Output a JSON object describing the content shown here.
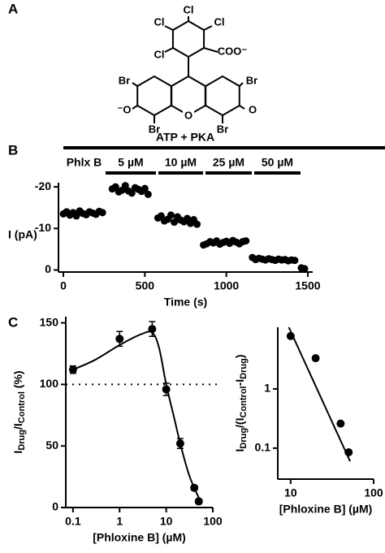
{
  "panel_labels": [
    "A",
    "B",
    "C"
  ],
  "structure": {
    "labels": [
      "Cl",
      "Cl",
      "Cl",
      "Cl",
      "COO⁻",
      "Br",
      "Br",
      "⁻O",
      "O",
      "O",
      "Br",
      "Br"
    ]
  },
  "chart_data": [
    {
      "type": "scatter",
      "title": "ATP + PKA",
      "annotations": [
        "Phlx B",
        "5 µM",
        "10 µM",
        "25 µM",
        "50 µM"
      ],
      "x": [
        0,
        20,
        40,
        60,
        80,
        100,
        120,
        140,
        160,
        180,
        200,
        220,
        240,
        300,
        320,
        340,
        360,
        380,
        400,
        420,
        440,
        460,
        480,
        500,
        520,
        580,
        600,
        620,
        640,
        660,
        680,
        700,
        720,
        740,
        760,
        780,
        800,
        820,
        860,
        880,
        900,
        920,
        940,
        960,
        980,
        1000,
        1020,
        1040,
        1060,
        1080,
        1100,
        1120,
        1160,
        1180,
        1200,
        1220,
        1240,
        1260,
        1280,
        1300,
        1320,
        1340,
        1360,
        1380,
        1400,
        1420,
        1460,
        1480
      ],
      "values": [
        -13.5,
        -14,
        -13.2,
        -13.8,
        -13,
        -14.2,
        -13.6,
        -13.3,
        -14,
        -13.7,
        -13.4,
        -14.1,
        -13.8,
        -19.5,
        -20,
        -18.8,
        -19.2,
        -20.3,
        -19,
        -18.5,
        -19.8,
        -19.4,
        -18.9,
        -19.6,
        -18.2,
        -12.5,
        -13,
        -11.8,
        -12.2,
        -13.2,
        -11.5,
        -12.8,
        -12,
        -11.6,
        -12.4,
        -11.2,
        -12.1,
        -11,
        -6,
        -6.3,
        -6.8,
        -6.5,
        -7,
        -6.2,
        -6.6,
        -6.9,
        -6.4,
        -7.1,
        -6.7,
        -6.3,
        -6.8,
        -7,
        -3,
        -2.5,
        -2.8,
        -2.6,
        -2.4,
        -2.7,
        -2.5,
        -2.3,
        -2.6,
        -2.4,
        -2.5,
        -2.2,
        -2.4,
        -2.3,
        -0.5,
        -0.3
      ],
      "xlim": [
        -30,
        1530
      ],
      "ylim": [
        0.5,
        -21
      ],
      "xticks": [
        0,
        500,
        1000,
        1500
      ],
      "yticks": [
        -20,
        -10,
        0
      ],
      "xlabel": "Time (s)",
      "ylabel": "I (pA)",
      "color": "#000000"
    },
    {
      "type": "line",
      "log_x": true,
      "x": [
        0.1,
        1,
        5,
        10,
        20,
        40,
        50
      ],
      "values": [
        112,
        137,
        145,
        96,
        52,
        16,
        5
      ],
      "errors": [
        3,
        6,
        6,
        5,
        4,
        2,
        2
      ],
      "fit_x": [
        0.1,
        0.3,
        1,
        3,
        5,
        7,
        10,
        15,
        20,
        30,
        40,
        50
      ],
      "fit_values": [
        112,
        120,
        132,
        141,
        142,
        130,
        100,
        72,
        52,
        28,
        16,
        8
      ],
      "hline": 100,
      "xlim": [
        0.07,
        100
      ],
      "ylim": [
        0,
        155
      ],
      "xticks": [
        0.1,
        1,
        10,
        100
      ],
      "yticks": [
        0,
        50,
        100,
        150
      ],
      "xlabel": "[Phloxine B] (µM)",
      "ylabel": [
        "I",
        "Drug",
        "/I",
        "Control",
        " (%)"
      ],
      "color": "#000000"
    },
    {
      "type": "line",
      "log_x": true,
      "log_y": true,
      "x": [
        10,
        20,
        40,
        50
      ],
      "values": [
        7.8,
        3.3,
        0.26,
        0.085
      ],
      "fit_x": [
        9.5,
        52
      ],
      "fit_values": [
        11,
        0.06
      ],
      "xlim": [
        7,
        100
      ],
      "ylim": [
        0.03,
        11
      ],
      "xticks": [
        10,
        100
      ],
      "yticks": [
        0.1,
        1
      ],
      "xlabel": "[Phloxine B] (µM)",
      "ylabel": [
        "I",
        "Drug",
        "/(I",
        "Control",
        "-I",
        "Drug",
        ")"
      ],
      "color": "#000000"
    }
  ]
}
